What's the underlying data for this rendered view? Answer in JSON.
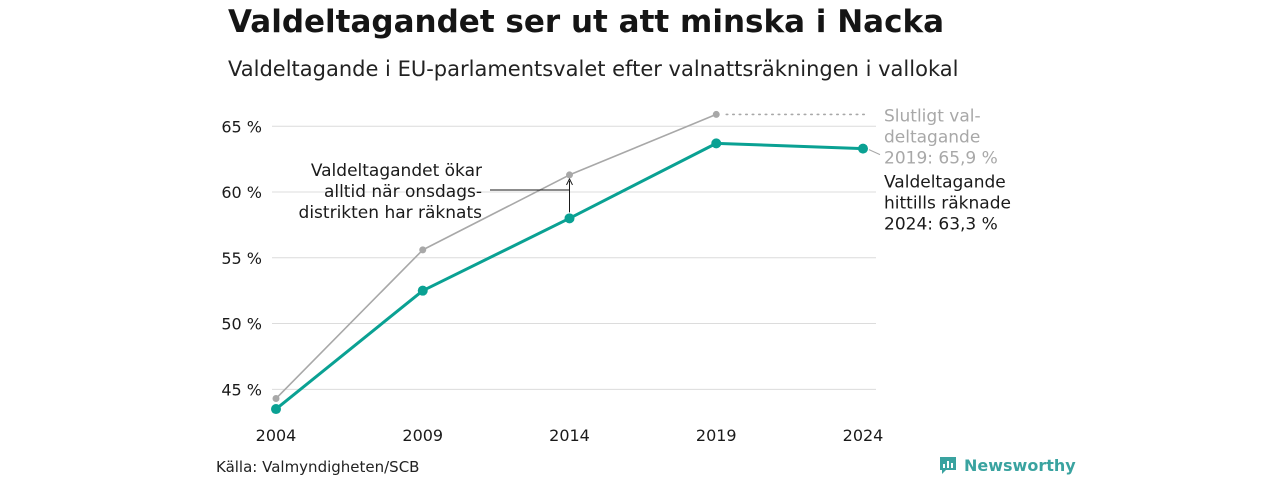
{
  "header": {
    "title": "Valdeltagandet ser ut att minska i Nacka",
    "subtitle": "Valdeltagande i EU-parlamentsvalet efter valnattsräkningen i vallokal"
  },
  "footer": {
    "source": "Källa: Valmyndigheten/SCB",
    "brand": "Newsworthy",
    "brand_icon": "newsworthy-logo-icon"
  },
  "colors": {
    "counted": "#0aa193",
    "final": "#a8a8a8",
    "grid": "#dcdcdc",
    "text": "#1a1a1a",
    "annotation": "#1a1a1a"
  },
  "chart_data": {
    "type": "line",
    "x": [
      "2004",
      "2009",
      "2014",
      "2019",
      "2024"
    ],
    "series": [
      {
        "key": "final",
        "values": [
          44.3,
          55.6,
          61.3,
          65.9,
          null
        ]
      },
      {
        "key": "counted",
        "values": [
          43.5,
          52.5,
          58.0,
          63.7,
          63.3
        ]
      }
    ],
    "ylim": [
      43.2,
      67.3
    ],
    "yticks": [
      45,
      50,
      55,
      60,
      65
    ],
    "ytick_labels": [
      "45 %",
      "50 %",
      "55 %",
      "60 %",
      "65 %"
    ],
    "grid": true,
    "annotations": {
      "final_label": [
        "Slutligt val-",
        "deltagande",
        "2019: 65,9 %"
      ],
      "counted_label": [
        "Valdeltagande",
        "hittills räknade",
        "2024: 63,3 %"
      ],
      "note": [
        "Valdeltagandet ökar",
        "alltid när onsdags-",
        "distrikten har räknats"
      ]
    }
  }
}
